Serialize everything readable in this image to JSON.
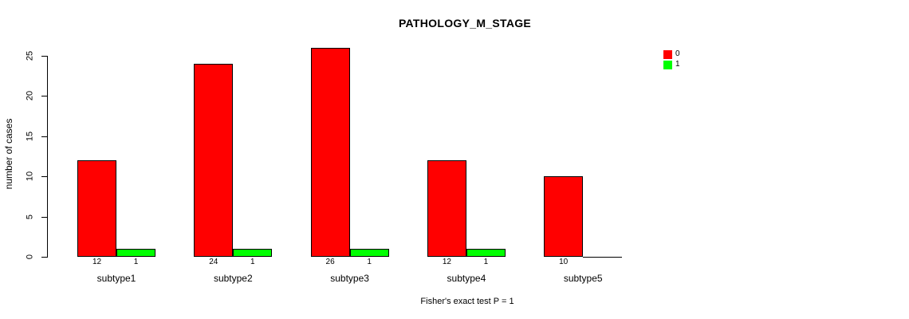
{
  "chart_data": {
    "type": "bar",
    "title": "PATHOLOGY_M_STAGE",
    "ylabel": "number of cases",
    "xlabel": "",
    "footer": "Fisher's exact test P = 1",
    "categories": [
      "subtype1",
      "subtype2",
      "subtype3",
      "subtype4",
      "subtype5"
    ],
    "series": [
      {
        "name": "0",
        "color": "#ff0000",
        "values": [
          12,
          24,
          26,
          12,
          10
        ]
      },
      {
        "name": "1",
        "color": "#00ff00",
        "values": [
          1,
          1,
          1,
          1,
          0
        ]
      }
    ],
    "bar_value_labels": [
      [
        "12",
        "1"
      ],
      [
        "24",
        "1"
      ],
      [
        "26",
        "1"
      ],
      [
        "12",
        "1"
      ],
      [
        "10",
        ""
      ]
    ],
    "yticks": [
      0,
      5,
      10,
      15,
      20,
      25
    ],
    "ylim": [
      0,
      26.5
    ],
    "grid": false,
    "legend_position": "top-right",
    "bar_border_color": "#000000",
    "text_color": "#000000"
  }
}
